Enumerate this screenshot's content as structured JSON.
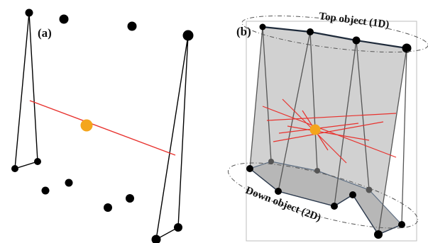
{
  "panel_a": {
    "label": "(a)"
  },
  "panel_b": {
    "label": "(b)",
    "top_object_label": "Top object (1D)",
    "down_object_label": "Down object (2D)"
  },
  "colors": {
    "node": "#000000",
    "edge": "#000000",
    "red_line": "#e8322e",
    "center_point": "#f4a51c",
    "surface_fill": "#cfcfcf",
    "bottom_fill": "#b9b9b9"
  }
}
